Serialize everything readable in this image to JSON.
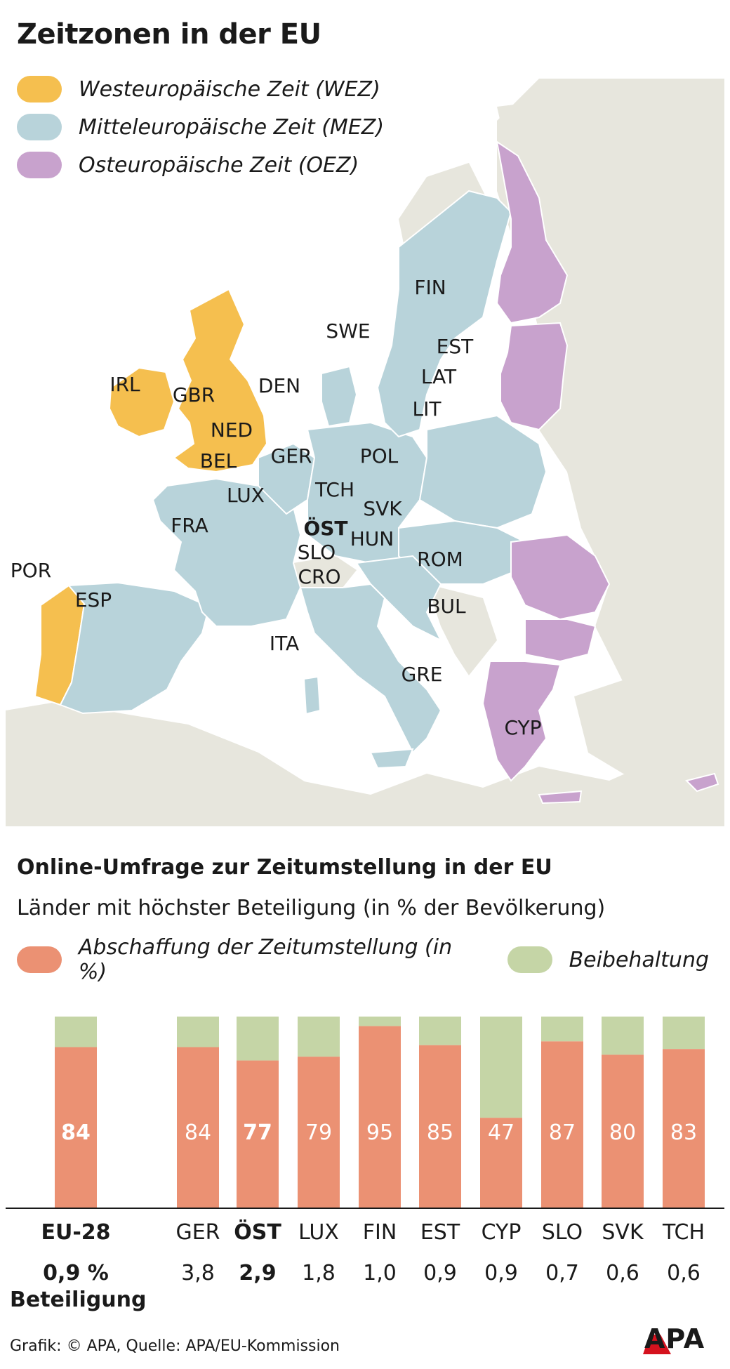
{
  "title": "Zeitzonen in der EU",
  "colors": {
    "wez": "#f5bf4f",
    "mez": "#b8d3da",
    "oez": "#c8a2cd",
    "abschaffung": "#eb9173",
    "beibehaltung": "#c5d5a6",
    "land": "#e7e6dd",
    "sea": "#ffffff"
  },
  "timezone_legend": [
    {
      "label": "Westeuropäische Zeit (WEZ)",
      "zone": "wez"
    },
    {
      "label": "Mitteleuropäische Zeit (MEZ)",
      "zone": "mez"
    },
    {
      "label": "Osteuropäische Zeit (OEZ)",
      "zone": "oez"
    }
  ],
  "map_labels": {
    "IRL": "IRL",
    "GBR": "GBR",
    "POR": "POR",
    "ESP": "ESP",
    "FRA": "FRA",
    "BEL": "BEL",
    "NED": "NED",
    "LUX": "LUX",
    "DEN": "DEN",
    "GER": "GER",
    "SWE": "SWE",
    "FIN": "FIN",
    "EST": "EST",
    "LAT": "LAT",
    "LIT": "LIT",
    "POL": "POL",
    "TCH": "TCH",
    "SVK": "SVK",
    "OST": "ÖST",
    "HUN": "HUN",
    "SLO": "SLO",
    "CRO": "CRO",
    "ROM": "ROM",
    "BUL": "BUL",
    "ITA": "ITA",
    "GRE": "GRE",
    "CYP": "CYP"
  },
  "survey": {
    "title": "Online-Umfrage zur Zeitumstellung in der EU",
    "subtitle": "Länder mit höchster Beteiligung (in % der Bevölkerung)",
    "legend_abschaffung": "Abschaffung der Zeitumstellung (in %)",
    "legend_beibehaltung": "Beibehaltung",
    "beteiligung_label": "Beteiligung"
  },
  "chart_data": {
    "type": "bar",
    "stacked": true,
    "categories": [
      "EU-28",
      "GER",
      "ÖST",
      "LUX",
      "FIN",
      "EST",
      "CYP",
      "SLO",
      "SVK",
      "TCH"
    ],
    "series": [
      {
        "name": "Abschaffung der Zeitumstellung (in %)",
        "values": [
          84,
          84,
          77,
          79,
          95,
          85,
          47,
          87,
          80,
          83
        ]
      },
      {
        "name": "Beibehaltung",
        "values": [
          16,
          16,
          23,
          21,
          5,
          15,
          53,
          13,
          20,
          17
        ]
      }
    ],
    "value_labels": [
      "84",
      "84",
      "77",
      "79",
      "95",
      "85",
      "47",
      "87",
      "80",
      "83"
    ],
    "beteiligung": [
      "0,9 %",
      "3,8",
      "2,9",
      "1,8",
      "1,0",
      "0,9",
      "0,9",
      "0,7",
      "0,6",
      "0,6"
    ],
    "highlighted": [
      "EU-28",
      "ÖST"
    ],
    "ylim": [
      0,
      100
    ]
  },
  "footer": {
    "source": "Grafik: © APA, Quelle: APA/EU-Kommission",
    "logo": "APA"
  }
}
